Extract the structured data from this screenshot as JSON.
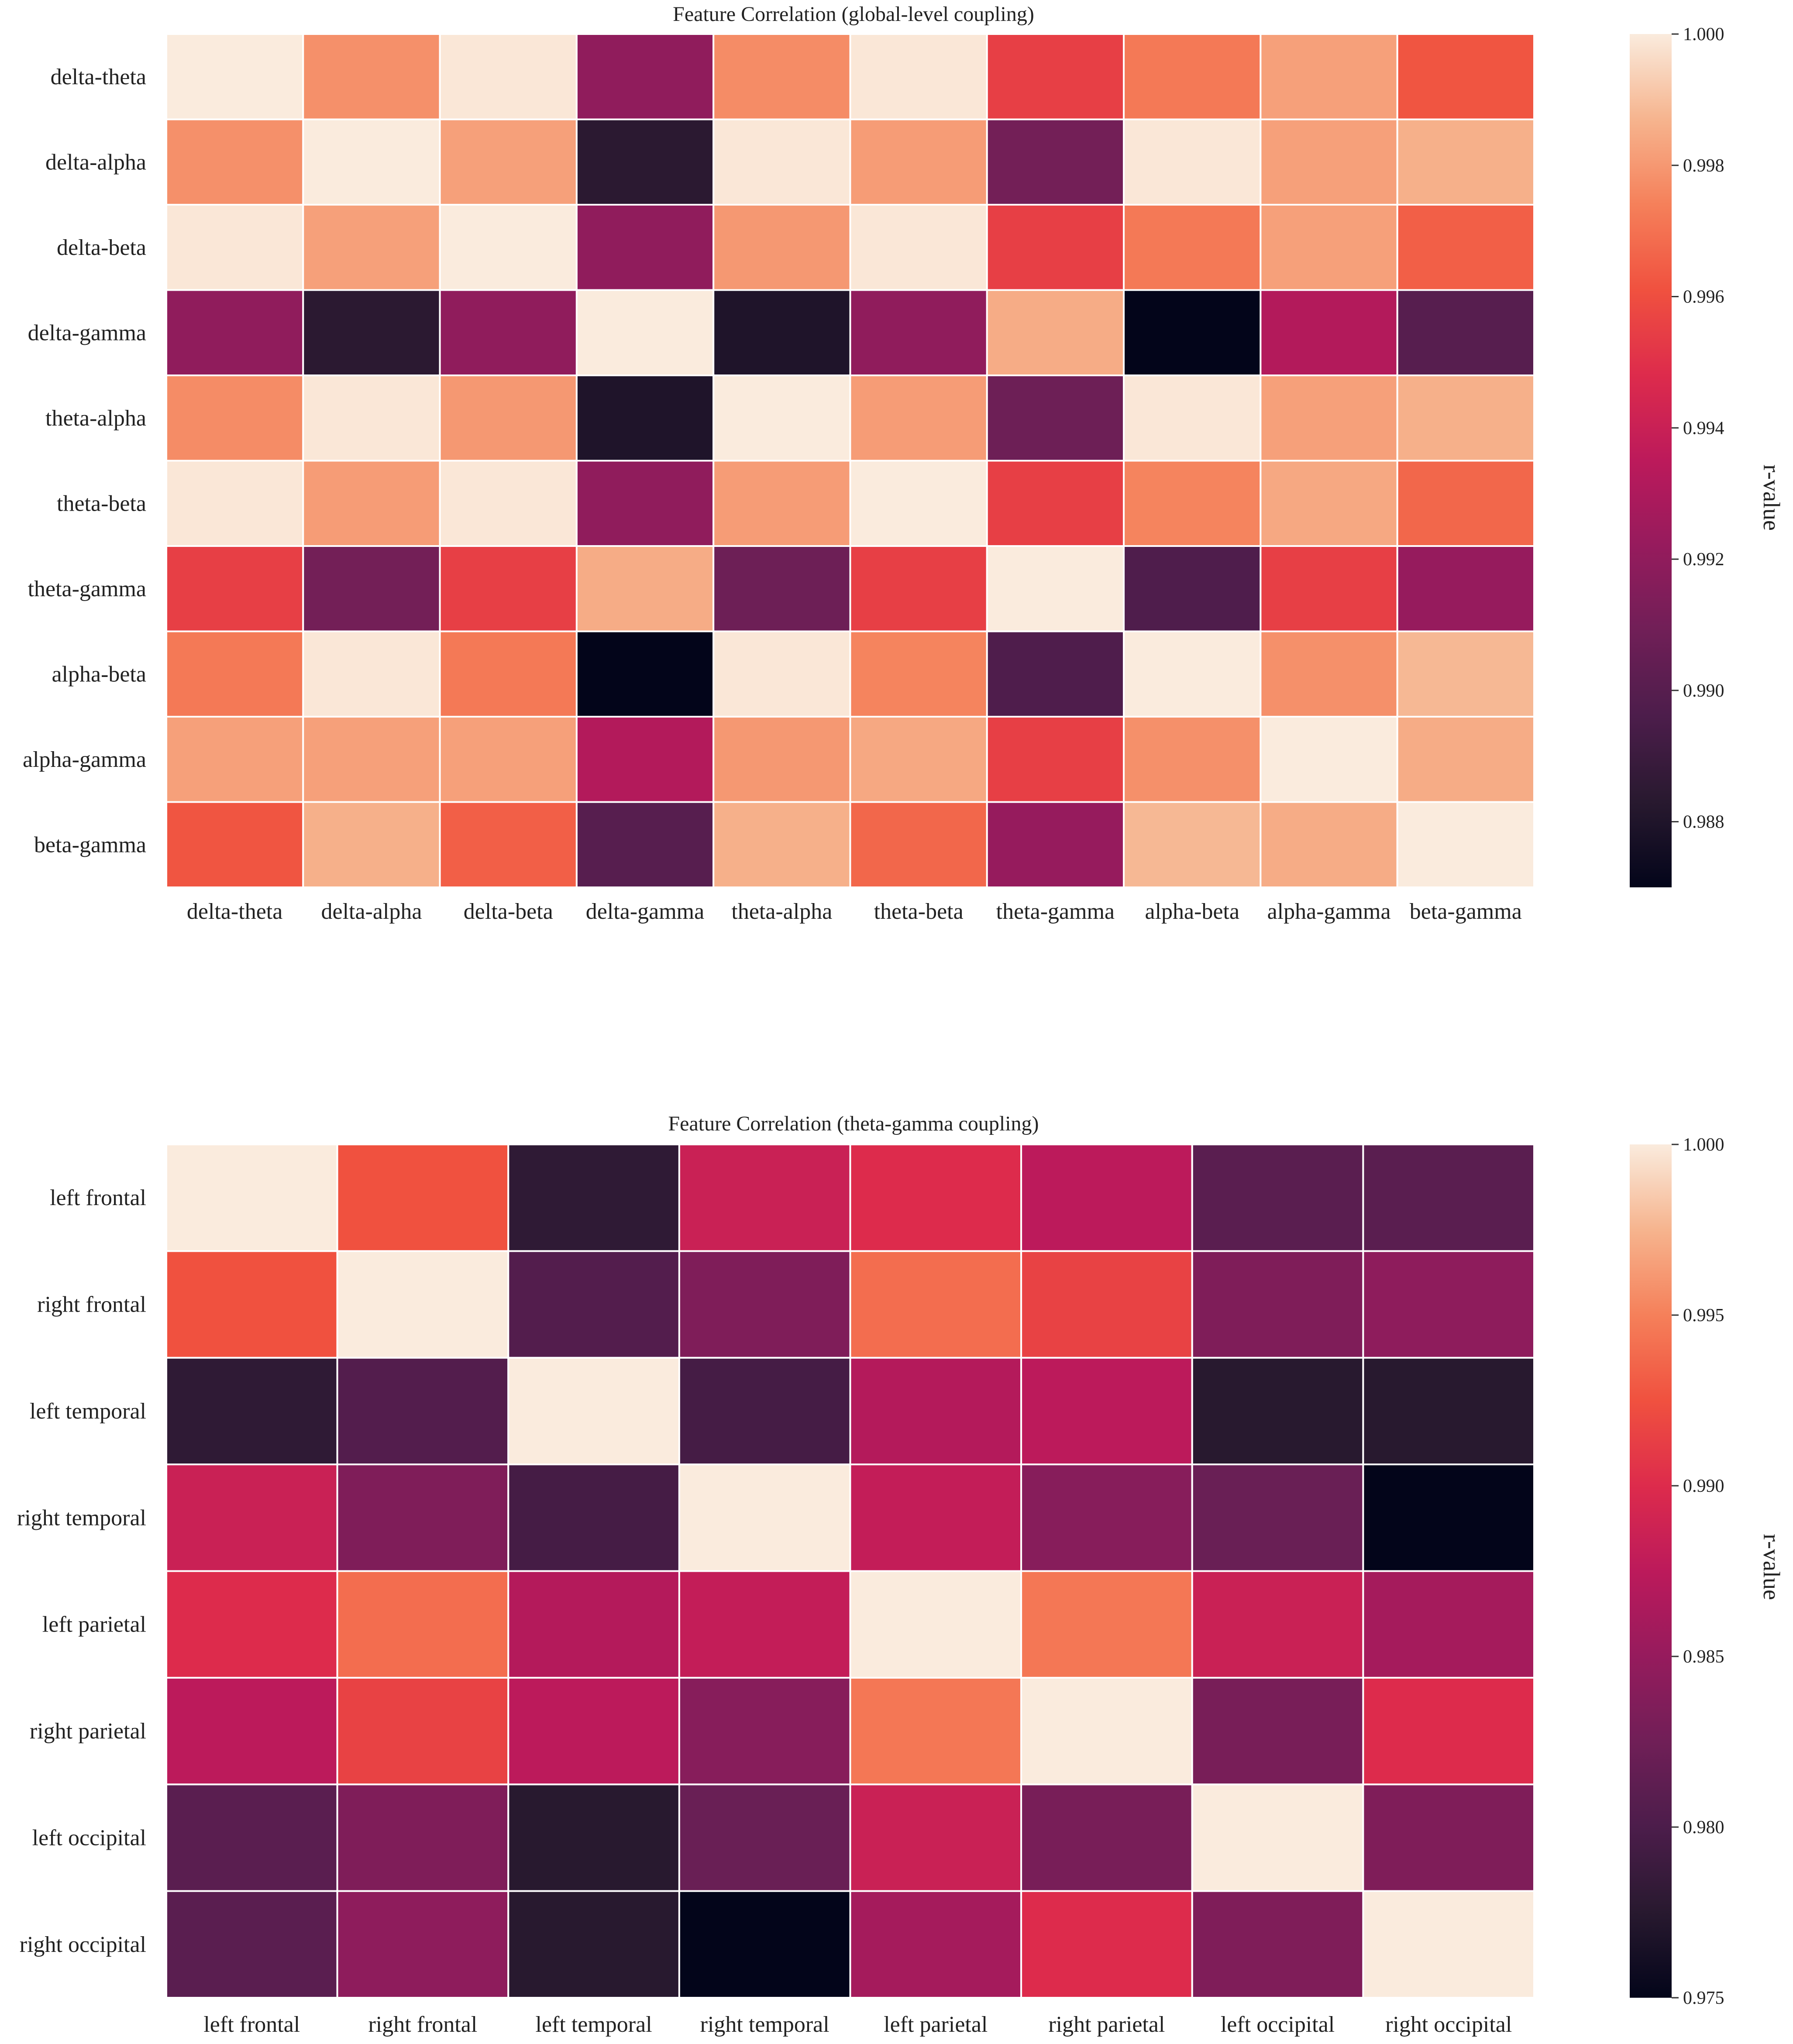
{
  "chart_data": [
    {
      "type": "heatmap",
      "title": "Feature Correlation (global-level coupling)",
      "row_labels": [
        "delta-theta",
        "delta-alpha",
        "delta-beta",
        "delta-gamma",
        "theta-alpha",
        "theta-beta",
        "theta-gamma",
        "alpha-beta",
        "alpha-gamma",
        "beta-gamma"
      ],
      "col_labels": [
        "delta-theta",
        "delta-alpha",
        "delta-beta",
        "delta-gamma",
        "theta-alpha",
        "theta-beta",
        "theta-gamma",
        "alpha-beta",
        "alpha-gamma",
        "beta-gamma"
      ],
      "values": [
        [
          1.0,
          0.9978,
          0.9999,
          0.992,
          0.9977,
          0.9999,
          0.9955,
          0.9972,
          0.9982,
          0.9962
        ],
        [
          0.9978,
          1.0,
          0.9982,
          0.9884,
          0.9999,
          0.9981,
          0.991,
          0.9999,
          0.9982,
          0.9986
        ],
        [
          0.9999,
          0.9982,
          1.0,
          0.992,
          0.998,
          0.9999,
          0.9955,
          0.9972,
          0.9982,
          0.9965
        ],
        [
          0.992,
          0.9884,
          0.992,
          1.0,
          0.988,
          0.992,
          0.9985,
          0.9868,
          0.9932,
          0.99
        ],
        [
          0.9977,
          0.9999,
          0.998,
          0.988,
          1.0,
          0.9981,
          0.9908,
          0.9999,
          0.9982,
          0.9986
        ],
        [
          0.9999,
          0.9981,
          0.9999,
          0.992,
          0.9981,
          1.0,
          0.9955,
          0.9975,
          0.9984,
          0.9967
        ],
        [
          0.9955,
          0.991,
          0.9955,
          0.9985,
          0.9908,
          0.9955,
          1.0,
          0.9897,
          0.9955,
          0.9922
        ],
        [
          0.9972,
          0.9999,
          0.9972,
          0.9868,
          0.9999,
          0.9975,
          0.9897,
          1.0,
          0.9978,
          0.9988
        ],
        [
          0.9982,
          0.9982,
          0.9982,
          0.9932,
          0.998,
          0.9984,
          0.9955,
          0.9978,
          1.0,
          0.9985
        ],
        [
          0.9962,
          0.9986,
          0.9965,
          0.99,
          0.9986,
          0.9967,
          0.9922,
          0.9988,
          0.9985,
          1.0
        ]
      ],
      "vmin": 0.987,
      "vmax": 1.0,
      "colorbar": {
        "label": "r-value",
        "ticks": [
          1.0,
          0.998,
          0.996,
          0.994,
          0.992,
          0.99,
          0.988
        ],
        "tick_labels": [
          "1.000",
          "0.998",
          "0.996",
          "0.994",
          "0.992",
          "0.990",
          "0.988"
        ]
      },
      "colormap": "rocket"
    },
    {
      "type": "heatmap",
      "title": "Feature Correlation (theta-gamma coupling)",
      "row_labels": [
        "left frontal",
        "right frontal",
        "left temporal",
        "right temporal",
        "left parietal",
        "right parietal",
        "left occipital",
        "right occipital"
      ],
      "col_labels": [
        "left frontal",
        "right frontal",
        "left temporal",
        "right temporal",
        "left parietal",
        "right parietal",
        "left occipital",
        "right occipital"
      ],
      "values": [
        [
          1.0,
          0.9925,
          0.978,
          0.9885,
          0.99,
          0.9875,
          0.981,
          0.981
        ],
        [
          0.9925,
          1.0,
          0.9805,
          0.9835,
          0.994,
          0.9915,
          0.9835,
          0.9845
        ],
        [
          0.978,
          0.9805,
          1.0,
          0.9795,
          0.987,
          0.9875,
          0.9775,
          0.9775
        ],
        [
          0.9885,
          0.9835,
          0.9795,
          1.0,
          0.988,
          0.984,
          0.982,
          0.975
        ],
        [
          0.99,
          0.994,
          0.987,
          0.988,
          1.0,
          0.9945,
          0.9885,
          0.986
        ],
        [
          0.9875,
          0.9915,
          0.9875,
          0.984,
          0.9945,
          1.0,
          0.983,
          0.99
        ],
        [
          0.981,
          0.9835,
          0.9775,
          0.982,
          0.9885,
          0.983,
          1.0,
          0.9835
        ],
        [
          0.981,
          0.9845,
          0.9775,
          0.975,
          0.986,
          0.99,
          0.9835,
          1.0
        ]
      ],
      "vmin": 0.975,
      "vmax": 1.0,
      "colorbar": {
        "label": "r-value",
        "ticks": [
          1.0,
          0.995,
          0.99,
          0.985,
          0.98,
          0.975
        ],
        "tick_labels": [
          "1.000",
          "0.995",
          "0.990",
          "0.985",
          "0.980",
          "0.975"
        ]
      },
      "colormap": "rocket"
    }
  ]
}
